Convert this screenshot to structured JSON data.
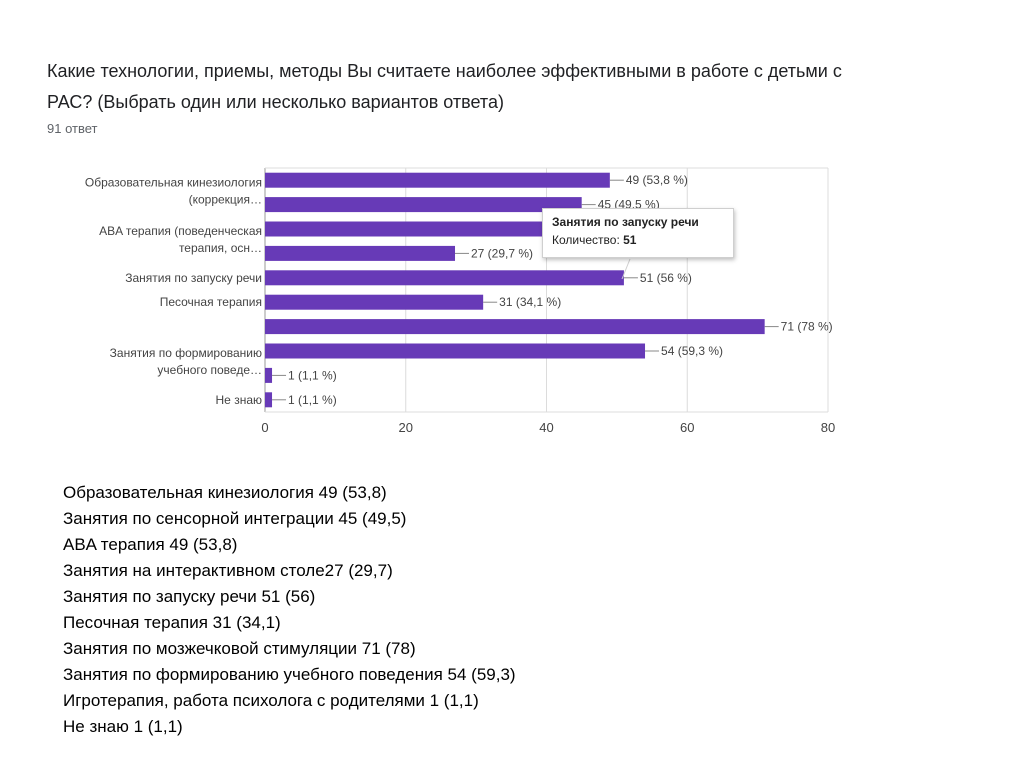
{
  "question": "Какие технологии, приемы, методы Вы считаете наиболее эффективными в работе с детьми с РАС? (Выбрать один или несколько вариантов ответа)",
  "answer_count": "91 ответ",
  "chart_data": {
    "type": "bar",
    "orientation": "horizontal",
    "bar_color": "#673ab7",
    "categories": [
      {
        "label_lines": [
          "Образовательная кинезиология",
          "(коррекция…"
        ],
        "value": 49,
        "label": "49 (53,8 %)"
      },
      {
        "label_lines": [],
        "value": 45,
        "label": "45 (49,5 %)"
      },
      {
        "label_lines": [
          "ABA терапия (поведенческая",
          "терапия, осн…"
        ],
        "value": 49,
        "label": "49 (53,8 %)"
      },
      {
        "label_lines": [],
        "value": 27,
        "label": "27 (29,7 %)"
      },
      {
        "label_lines": [
          "Занятия по запуску речи"
        ],
        "value": 51,
        "label": "51 (56 %)"
      },
      {
        "label_lines": [
          "Песочная терапия"
        ],
        "value": 31,
        "label": "31 (34,1 %)"
      },
      {
        "label_lines": [],
        "value": 71,
        "label": "71 (78 %)"
      },
      {
        "label_lines": [
          "Занятия по формированию",
          "учебного поведе…"
        ],
        "value": 54,
        "label": "54 (59,3 %)"
      },
      {
        "label_lines": [],
        "value": 1,
        "label": "1 (1,1 %)"
      },
      {
        "label_lines": [
          "Не знаю"
        ],
        "value": 1,
        "label": "1 (1,1 %)"
      }
    ],
    "xlim": [
      0,
      80
    ],
    "xticks": [
      0,
      20,
      40,
      60,
      80
    ],
    "grid": true,
    "tooltip": {
      "title": "Занятия по запуску речи",
      "label": "Количество:",
      "value": "51"
    }
  },
  "summary_lines": [
    "Образовательная кинезиология 49 (53,8)",
    "Занятия по сенсорной интеграции 45 (49,5)",
    "ABA терапия 49 (53,8)",
    "Занятия на интерактивном столе27 (29,7)",
    "Занятия по запуску речи 51 (56)",
    "Песочная терапия 31 (34,1)",
    "Занятия по мозжечковой стимуляции 71 (78)",
    "Занятия по формированию учебного поведения 54 (59,3)",
    "Игротерапия, работа психолога с родителями 1 (1,1)",
    "Не знаю 1 (1,1)"
  ]
}
